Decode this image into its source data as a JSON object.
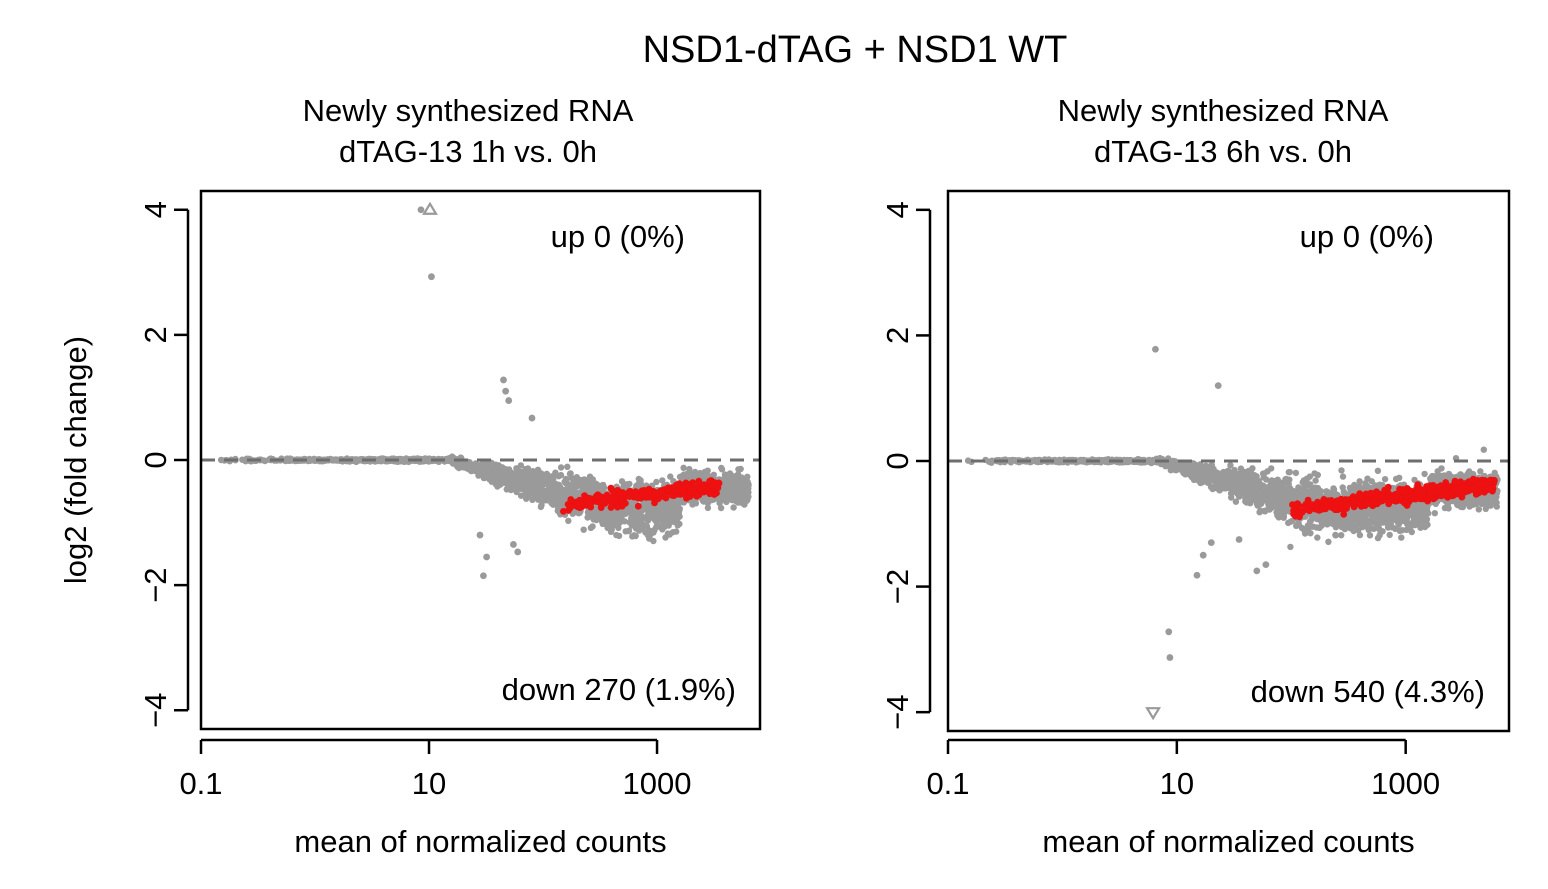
{
  "figure_title": "NSD1-dTAG + NSD1 WT",
  "colors": {
    "ns_point": "#9a9a9a",
    "sig_point": "#ee1111",
    "ref_line": "#6e6e6e",
    "axis": "#000000"
  },
  "chart_data": [
    {
      "type": "scatter",
      "subtype": "MA-plot",
      "title_line1": "Newly synthesized RNA",
      "title_line2": "dTAG-13  1h vs. 0h",
      "xlabel": "mean of normalized counts",
      "ylabel": "log2 (fold change)",
      "x_scale": "log10",
      "xlim": [
        0.1,
        8000
      ],
      "ylim": [
        -4.3,
        4.3
      ],
      "x_ticks": [
        0.1,
        10,
        1000
      ],
      "x_tick_labels": [
        "0.1",
        "10",
        "1000"
      ],
      "y_ticks": [
        -4,
        -2,
        0,
        2,
        4
      ],
      "y_tick_labels": [
        "−4",
        "−2",
        "0",
        "2",
        "4"
      ],
      "ref_line_y": 0,
      "up_label": "up 0 (0%)",
      "down_label": "down 270 (1.9%)",
      "seed": 11,
      "grey_cloud": {
        "n": 2400,
        "drop_start_x": 15,
        "drop_max": -0.75,
        "spread": 0.3
      },
      "red_band": {
        "n": 270,
        "x_range": [
          150,
          3500
        ],
        "y_at_start": -0.72,
        "y_at_end": -0.42,
        "spread": 0.1
      },
      "outliers": [
        {
          "x": 8.5,
          "y": 4.0,
          "shape": "point"
        },
        {
          "x": 10.2,
          "y": 4.0,
          "shape": "triangle-up"
        },
        {
          "x": 10.5,
          "y": 2.93,
          "shape": "point"
        },
        {
          "x": 45,
          "y": 1.28,
          "shape": "point"
        },
        {
          "x": 47,
          "y": 1.1,
          "shape": "point"
        },
        {
          "x": 50,
          "y": 0.95,
          "shape": "point"
        },
        {
          "x": 80,
          "y": 0.67,
          "shape": "point"
        },
        {
          "x": 30,
          "y": -1.85,
          "shape": "point"
        },
        {
          "x": 32,
          "y": -1.55,
          "shape": "point"
        },
        {
          "x": 28,
          "y": -1.2,
          "shape": "point"
        },
        {
          "x": 55,
          "y": -1.35,
          "shape": "point"
        },
        {
          "x": 60,
          "y": -1.47,
          "shape": "point"
        }
      ]
    },
    {
      "type": "scatter",
      "subtype": "MA-plot",
      "title_line1": "Newly synthesized RNA",
      "title_line2": "dTAG-13  6h vs. 0h",
      "xlabel": "mean of normalized counts",
      "ylabel": "",
      "x_scale": "log10",
      "xlim": [
        0.1,
        8000
      ],
      "ylim": [
        -4.3,
        4.3
      ],
      "x_ticks": [
        0.1,
        10,
        1000
      ],
      "x_tick_labels": [
        "0.1",
        "10",
        "1000"
      ],
      "y_ticks": [
        -4,
        -2,
        0,
        2,
        4
      ],
      "y_tick_labels": [
        "−4",
        "−2",
        "0",
        "2",
        "4"
      ],
      "ref_line_y": 0,
      "up_label": "up 0 (0%)",
      "down_label": "down 540 (4.3%)",
      "seed": 23,
      "grey_cloud": {
        "n": 2600,
        "drop_start_x": 7,
        "drop_max": -0.75,
        "spread": 0.3
      },
      "red_band": {
        "n": 540,
        "x_range": [
          100,
          6000
        ],
        "y_at_start": -0.78,
        "y_at_end": -0.38,
        "spread": 0.1
      },
      "outliers": [
        {
          "x": 6.5,
          "y": 1.78,
          "shape": "point"
        },
        {
          "x": 23,
          "y": 1.2,
          "shape": "point"
        },
        {
          "x": 8.5,
          "y": -2.72,
          "shape": "point"
        },
        {
          "x": 8.7,
          "y": -3.13,
          "shape": "point"
        },
        {
          "x": 6.2,
          "y": -4.0,
          "shape": "triangle-down"
        },
        {
          "x": 15,
          "y": -1.82,
          "shape": "point"
        },
        {
          "x": 17,
          "y": -1.5,
          "shape": "point"
        },
        {
          "x": 20,
          "y": -1.3,
          "shape": "point"
        },
        {
          "x": 50,
          "y": -1.75,
          "shape": "point"
        },
        {
          "x": 60,
          "y": -1.65,
          "shape": "point"
        },
        {
          "x": 35,
          "y": -1.25,
          "shape": "point"
        }
      ]
    }
  ]
}
